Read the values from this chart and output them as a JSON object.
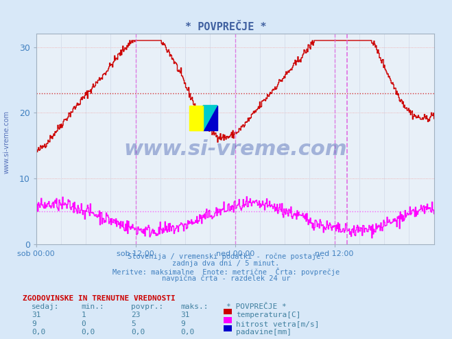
{
  "title": "* POVPREČJE *",
  "bg_color": "#d8e8f8",
  "plot_bg_color": "#e8f0f8",
  "grid_color": "#f08080",
  "grid_color2": "#c8d8e8",
  "xlabel_color": "#4080c0",
  "ylabel_color": "#4080c0",
  "title_color": "#4060a0",
  "ylim": [
    0,
    32
  ],
  "yticks": [
    0,
    10,
    20,
    30
  ],
  "xtick_labels": [
    "sob 00:00",
    "sob 12:00",
    "ned 00:00",
    "ned 12:00"
  ],
  "avg_line_temp": 23,
  "avg_line_wind": 5,
  "footer_lines": [
    "Slovenija / vremenski podatki - ročne postaje.",
    "zadnja dva dni / 5 minut.",
    "Meritve: maksimalne  Enote: metrične  Črta: povprečje",
    "navpična črta - razdelek 24 ur"
  ],
  "table_header": "ZGODOVINSKE IN TRENUTNE VREDNOSTI",
  "table_cols": [
    "sedaj:",
    "min.:",
    "povpr.:",
    "maks.:"
  ],
  "table_data": [
    [
      31,
      1,
      23,
      31
    ],
    [
      9,
      0,
      5,
      9
    ],
    [
      "0,0",
      "0,0",
      "0,0",
      "0,0"
    ]
  ],
  "legend_label": "* POVPREČJE *",
  "legend_items": [
    {
      "label": "temperatura[C]",
      "color": "#cc0000"
    },
    {
      "label": "hitrost vetra[m/s]",
      "color": "#ff00ff"
    },
    {
      "label": "padavine[mm]",
      "color": "#0000cc"
    }
  ],
  "temp_color": "#cc0000",
  "wind_color": "#ff00ff",
  "rain_color": "#0000cc",
  "vline_color": "#e060e0",
  "watermark": "www.si-vreme.com",
  "watermark_color": "#2040a0"
}
